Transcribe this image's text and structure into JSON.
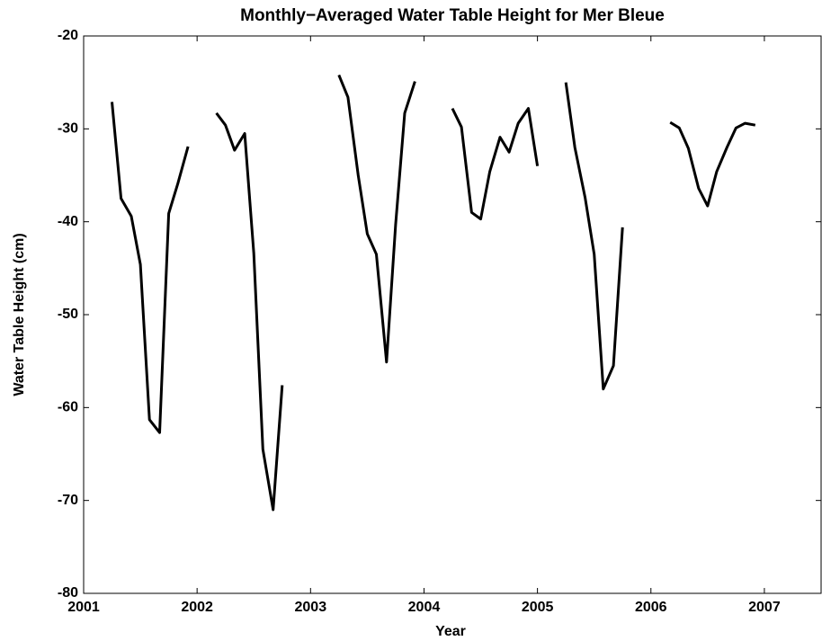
{
  "chart_data": {
    "type": "line",
    "title": "Monthly−Averaged Water Table Height for Mer Bleue",
    "x_label": "Year",
    "y_label": "Water Table Height (cm)",
    "x": [
      2001.25,
      2001.33,
      2001.42,
      2001.5,
      2001.58,
      2001.67,
      2001.75,
      2001.83,
      2001.92,
      null,
      2002.17,
      2002.25,
      2002.33,
      2002.42,
      2002.5,
      2002.58,
      2002.67,
      2002.75,
      null,
      2003.25,
      2003.33,
      2003.42,
      2003.5,
      2003.58,
      2003.67,
      2003.75,
      2003.83,
      2003.92,
      null,
      2004.25,
      2004.33,
      2004.42,
      2004.5,
      2004.58,
      2004.67,
      2004.75,
      2004.83,
      2004.92,
      2005.0,
      null,
      2005.25,
      2005.33,
      2005.42,
      2005.5,
      2005.58,
      2005.67,
      2005.75,
      null,
      2006.17,
      2006.25,
      2006.33,
      2006.42,
      2006.5,
      2006.58,
      2006.67,
      2006.75,
      2006.83,
      2006.92
    ],
    "series": [
      {
        "name": "Water table height",
        "color": "#000000",
        "values": [
          -27.1,
          -37.5,
          -39.4,
          -44.6,
          -61.3,
          -62.7,
          -39.1,
          -35.9,
          -31.9,
          null,
          -28.3,
          -29.6,
          -32.3,
          -30.5,
          -43.4,
          -64.5,
          -71.0,
          -57.6,
          null,
          -24.2,
          -26.6,
          -35.0,
          -41.3,
          -43.5,
          -55.1,
          -40.3,
          -28.3,
          -24.9,
          null,
          -27.8,
          -29.8,
          -39.0,
          -39.7,
          -34.6,
          -30.9,
          -32.5,
          -29.4,
          -27.8,
          -34.0,
          null,
          -25.0,
          -32.0,
          -37.4,
          -43.5,
          -58.0,
          -55.5,
          -40.6,
          null,
          -29.3,
          -29.9,
          -32.1,
          -36.4,
          -38.3,
          -34.6,
          -32.0,
          -29.9,
          -29.4,
          -29.6
        ]
      }
    ],
    "xlim": [
      2001,
      2007.5
    ],
    "xticks": [
      2001,
      2002,
      2003,
      2004,
      2005,
      2006,
      2007
    ],
    "ylim": [
      -80,
      -20
    ],
    "yticks": [
      -80,
      -70,
      -60,
      -50,
      -40,
      -30,
      -20
    ],
    "grid": false
  }
}
